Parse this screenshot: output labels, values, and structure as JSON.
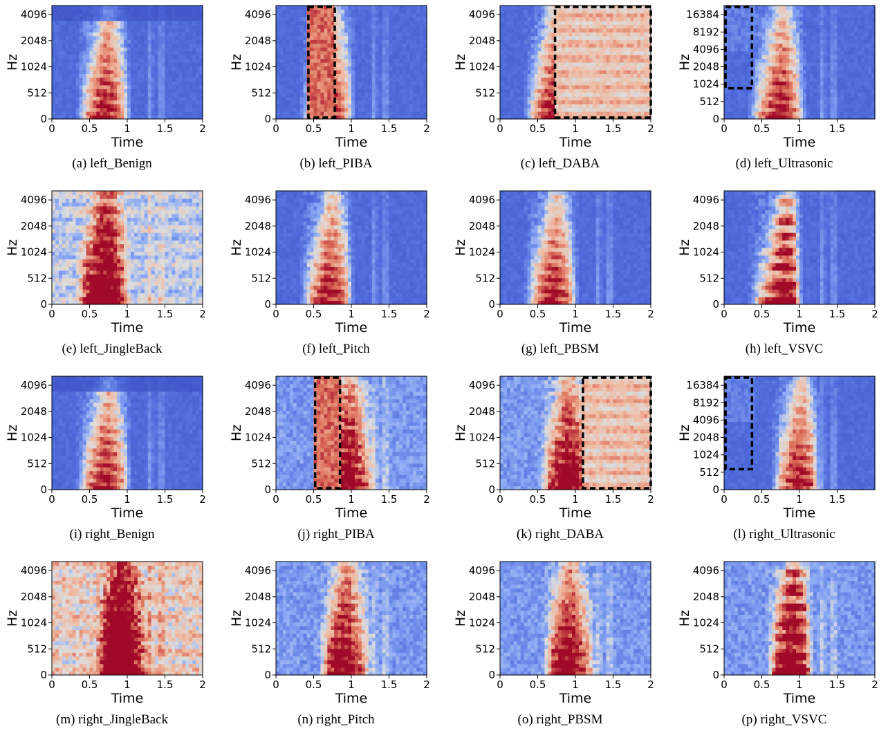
{
  "chart_data": [
    {
      "id": "a",
      "type": "heatmap",
      "variant": "benign",
      "caption": "(a) left_Benign",
      "xlabel": "Time",
      "ylabel": "Hz",
      "xticks": [
        "0",
        "0.5",
        "1",
        "1.5",
        "2"
      ],
      "yticks": [
        "0",
        "512",
        "1024",
        "2048",
        "4096"
      ],
      "xlim": [
        0,
        2
      ],
      "pattern": {
        "onset": 0.3,
        "peak": 0.72,
        "offset": 1.02
      },
      "extras": [
        {
          "t": 1.42,
          "f": 5600
        }
      ]
    },
    {
      "id": "b",
      "type": "heatmap",
      "variant": "piba",
      "caption": "(b) left_PIBA",
      "xlabel": "Time",
      "ylabel": "Hz",
      "xticks": [
        "0",
        "0.5",
        "1",
        "1.5",
        "2"
      ],
      "yticks": [
        "0",
        "512",
        "1024",
        "2048",
        "4096"
      ],
      "xlim": [
        0,
        2
      ],
      "pattern": {
        "onset": 0.3,
        "peak": 0.72,
        "offset": 1.02
      },
      "highlight": {
        "t0": 0.43,
        "t1": 0.78,
        "f0": 0,
        "f1": "max"
      }
    },
    {
      "id": "c",
      "type": "heatmap",
      "variant": "daba",
      "caption": "(c) left_DABA",
      "xlabel": "Time",
      "ylabel": "Hz",
      "xticks": [
        "0",
        "0.5",
        "1",
        "1.5",
        "2"
      ],
      "yticks": [
        "0",
        "512",
        "1024",
        "2048",
        "4096"
      ],
      "xlim": [
        0,
        2
      ],
      "pattern": {
        "onset": 0.3,
        "peak": 0.72,
        "offset": 1.02
      },
      "highlight": {
        "t0": 0.73,
        "t1": 2.0,
        "f0": 0,
        "f1": "max"
      }
    },
    {
      "id": "d",
      "type": "heatmap",
      "variant": "ultrasonic",
      "caption": "(d) left_Ultrasonic",
      "xlabel": "Time",
      "ylabel": "Hz",
      "xticks": [
        "0",
        "0.5",
        "1",
        "1.5"
      ],
      "yticks": [
        "0",
        "512",
        "1024",
        "2048",
        "4096",
        "8192",
        "16384"
      ],
      "xlim": [
        0,
        2
      ],
      "pattern": {
        "onset": 0.3,
        "peak": 0.75,
        "offset": 1.05
      },
      "highlight": {
        "t0": 0.02,
        "t1": 0.37,
        "f0": 900,
        "f1": "max"
      }
    },
    {
      "id": "e",
      "type": "heatmap",
      "variant": "jingle",
      "caption": "(e) left_JingleBack",
      "xlabel": "Time",
      "ylabel": "Hz",
      "xticks": [
        "0",
        "0.5",
        "1",
        "1.5",
        "2"
      ],
      "yticks": [
        "0",
        "512",
        "1024",
        "2048",
        "4096"
      ],
      "xlim": [
        0,
        2
      ],
      "pattern": {
        "onset": 0.3,
        "peak": 0.7,
        "offset": 1.0
      }
    },
    {
      "id": "f",
      "type": "heatmap",
      "variant": "pitch",
      "caption": "(f) left_Pitch",
      "xlabel": "Time",
      "ylabel": "Hz",
      "xticks": [
        "0",
        "0.5",
        "1",
        "1.5",
        "2"
      ],
      "yticks": [
        "0",
        "512",
        "1024",
        "2048",
        "4096"
      ],
      "xlim": [
        0,
        2
      ],
      "pattern": {
        "onset": 0.3,
        "peak": 0.72,
        "offset": 1.0
      },
      "extras": [
        {
          "t": 1.42,
          "f": 5700
        }
      ]
    },
    {
      "id": "g",
      "type": "heatmap",
      "variant": "pitch",
      "caption": "(g) left_PBSM",
      "xlabel": "Time",
      "ylabel": "Hz",
      "xticks": [
        "0",
        "0.5",
        "1",
        "1.5",
        "2"
      ],
      "yticks": [
        "0",
        "512",
        "1024",
        "2048",
        "4096"
      ],
      "xlim": [
        0,
        2
      ],
      "pattern": {
        "onset": 0.3,
        "peak": 0.72,
        "offset": 1.0
      },
      "extras": [
        {
          "t": 1.42,
          "f": 5700
        }
      ]
    },
    {
      "id": "h",
      "type": "heatmap",
      "variant": "vsvc",
      "caption": "(h) left_VSVC",
      "xlabel": "Time",
      "ylabel": "Hz",
      "xticks": [
        "0",
        "0.5",
        "1",
        "1.5",
        "2"
      ],
      "yticks": [
        "0",
        "512",
        "1024",
        "2048",
        "4096"
      ],
      "xlim": [
        0,
        2
      ],
      "pattern": {
        "onset": 0.3,
        "peak": 0.8,
        "offset": 1.0
      }
    },
    {
      "id": "i",
      "type": "heatmap",
      "variant": "benign",
      "caption": "(i) right_Benign",
      "xlabel": "Time",
      "ylabel": "Hz",
      "xticks": [
        "0",
        "0.5",
        "1",
        "1.5",
        "2"
      ],
      "yticks": [
        "0",
        "512",
        "1024",
        "2048",
        "4096"
      ],
      "xlim": [
        0,
        2
      ],
      "pattern": {
        "onset": 0.3,
        "peak": 0.72,
        "offset": 1.02
      },
      "extras": [
        {
          "t": 1.42,
          "f": 5600
        }
      ]
    },
    {
      "id": "j",
      "type": "heatmap",
      "variant": "piba_r",
      "caption": "(j) right_PIBA",
      "xlabel": "Time",
      "ylabel": "Hz",
      "xticks": [
        "0",
        "0.5",
        "1",
        "1.5",
        "2"
      ],
      "yticks": [
        "0",
        "512",
        "1024",
        "2048",
        "4096"
      ],
      "xlim": [
        0,
        2
      ],
      "pattern": {
        "onset": 0.55,
        "peak": 0.95,
        "offset": 1.3
      },
      "highlight": {
        "t0": 0.52,
        "t1": 0.85,
        "f0": 0,
        "f1": "max"
      }
    },
    {
      "id": "k",
      "type": "heatmap",
      "variant": "daba_r",
      "caption": "(k) right_DABA",
      "xlabel": "Time",
      "ylabel": "Hz",
      "xticks": [
        "0",
        "0.5",
        "1",
        "1.5",
        "2"
      ],
      "yticks": [
        "0",
        "512",
        "1024",
        "2048",
        "4096"
      ],
      "xlim": [
        0,
        2
      ],
      "pattern": {
        "onset": 0.5,
        "peak": 0.9,
        "offset": 1.2
      },
      "highlight": {
        "t0": 1.1,
        "t1": 2.0,
        "f0": 0,
        "f1": "max"
      }
    },
    {
      "id": "l",
      "type": "heatmap",
      "variant": "ultrasonic_r",
      "caption": "(l) right_Ultrasonic",
      "xlabel": "Time",
      "ylabel": "Hz",
      "xticks": [
        "0",
        "0.5",
        "1",
        "1.5"
      ],
      "yticks": [
        "0",
        "512",
        "1024",
        "2048",
        "4096",
        "8192",
        "16384"
      ],
      "xlim": [
        0,
        2
      ],
      "pattern": {
        "onset": 0.6,
        "peak": 1.0,
        "offset": 1.25
      },
      "highlight": {
        "t0": 0.02,
        "t1": 0.37,
        "f0": 600,
        "f1": "max"
      }
    },
    {
      "id": "m",
      "type": "heatmap",
      "variant": "jingle_r",
      "caption": "(m) right_JingleBack",
      "xlabel": "Time",
      "ylabel": "Hz",
      "xticks": [
        "0",
        "0.5",
        "1",
        "1.5",
        "2"
      ],
      "yticks": [
        "0",
        "512",
        "1024",
        "2048",
        "4096"
      ],
      "xlim": [
        0,
        2
      ],
      "pattern": {
        "onset": 0.55,
        "peak": 0.9,
        "offset": 1.25
      }
    },
    {
      "id": "n",
      "type": "heatmap",
      "variant": "pitch_r",
      "caption": "(n) right_Pitch",
      "xlabel": "Time",
      "ylabel": "Hz",
      "xticks": [
        "0",
        "0.5",
        "1",
        "1.5",
        "2"
      ],
      "yticks": [
        "0",
        "512",
        "1024",
        "2048",
        "4096"
      ],
      "xlim": [
        0,
        2
      ],
      "pattern": {
        "onset": 0.55,
        "peak": 0.9,
        "offset": 1.25
      }
    },
    {
      "id": "o",
      "type": "heatmap",
      "variant": "pitch_r",
      "caption": "(o) right_PBSM",
      "xlabel": "Time",
      "ylabel": "Hz",
      "xticks": [
        "0",
        "0.5",
        "1",
        "1.5",
        "2"
      ],
      "yticks": [
        "0",
        "512",
        "1024",
        "2048",
        "4096"
      ],
      "xlim": [
        0,
        2
      ],
      "pattern": {
        "onset": 0.55,
        "peak": 0.9,
        "offset": 1.25
      }
    },
    {
      "id": "p",
      "type": "heatmap",
      "variant": "vsvc_r",
      "caption": "(p) right_VSVC",
      "xlabel": "Time",
      "ylabel": "Hz",
      "xticks": [
        "0",
        "0.5",
        "1",
        "1.5",
        "2"
      ],
      "yticks": [
        "0",
        "512",
        "1024",
        "2048",
        "4096"
      ],
      "xlim": [
        0,
        2
      ],
      "pattern": {
        "onset": 0.55,
        "peak": 0.9,
        "offset": 1.15
      }
    }
  ],
  "colors": {
    "low": "#3b4cc0",
    "mid": "#dddddd",
    "high": "#b40426",
    "box": "#000000"
  }
}
